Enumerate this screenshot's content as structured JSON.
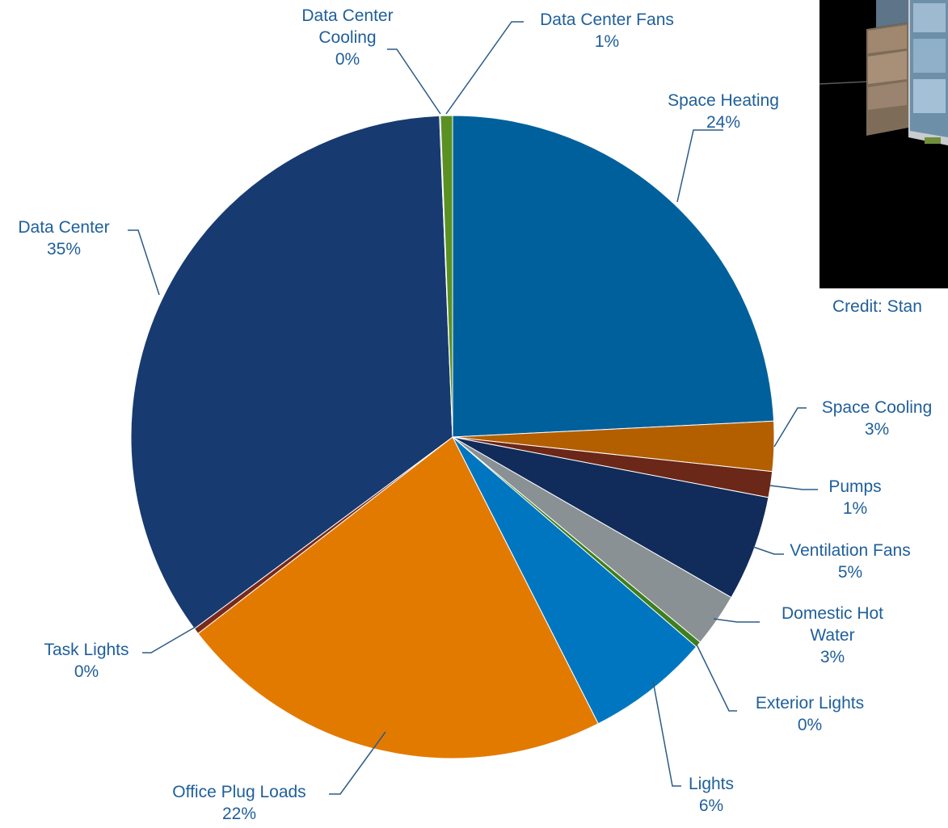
{
  "chart_data": {
    "type": "pie",
    "title": "",
    "start_angle_deg": 0,
    "direction": "clockwise",
    "slices": [
      {
        "name": "Space Heating",
        "value": 24.2,
        "pct_label": "24%",
        "color": "#00609c"
      },
      {
        "name": "Space Cooling",
        "value": 2.5,
        "pct_label": "3%",
        "color": "#b35f00"
      },
      {
        "name": "Pumps",
        "value": 1.3,
        "pct_label": "1%",
        "color": "#6b2718"
      },
      {
        "name": "Ventilation Fans",
        "value": 5.3,
        "pct_label": "5%",
        "color": "#112c5a"
      },
      {
        "name": "Domestic Hot Water",
        "value": 2.7,
        "pct_label": "3%",
        "color": "#8a9195"
      },
      {
        "name": "Exterior Lights",
        "value": 0.3,
        "pct_label": "0%",
        "color": "#3f7e1d"
      },
      {
        "name": "Lights",
        "value": 6.2,
        "pct_label": "6%",
        "color": "#0076c0"
      },
      {
        "name": "Office Plug Loads",
        "value": 22.0,
        "pct_label": "22%",
        "color": "#e37a00"
      },
      {
        "name": "Task Lights",
        "value": 0.3,
        "pct_label": "0%",
        "color": "#7a2a1a"
      },
      {
        "name": "Data Center",
        "value": 34.5,
        "pct_label": "35%",
        "color": "#173a70"
      },
      {
        "name": "Data Center Cooling",
        "value": 0.05,
        "pct_label": "0%",
        "color": "#1b3c6e"
      },
      {
        "name": "Data Center Fans",
        "value": 0.6,
        "pct_label": "1%",
        "color": "#5a9122"
      }
    ]
  },
  "label_lines": {
    "Space Heating": [
      "Space Heating",
      "24%"
    ],
    "Space Cooling": [
      "Space Cooling",
      "3%"
    ],
    "Pumps": [
      "Pumps",
      "1%"
    ],
    "Ventilation Fans": [
      "Ventilation Fans",
      "5%"
    ],
    "Domestic Hot Water": [
      "Domestic Hot",
      "Water",
      "3%"
    ],
    "Exterior Lights": [
      "Exterior Lights",
      "0%"
    ],
    "Lights": [
      "Lights",
      "6%"
    ],
    "Office Plug Loads": [
      "Office Plug Loads",
      "22%"
    ],
    "Task Lights": [
      "Task Lights",
      "0%"
    ],
    "Data Center": [
      "Data Center",
      "35%"
    ],
    "Data Center Cooling": [
      "Data Center",
      "Cooling",
      "0%"
    ],
    "Data Center Fans": [
      "Data Center Fans",
      "1%"
    ]
  },
  "credit_text": "Credit: Stan"
}
